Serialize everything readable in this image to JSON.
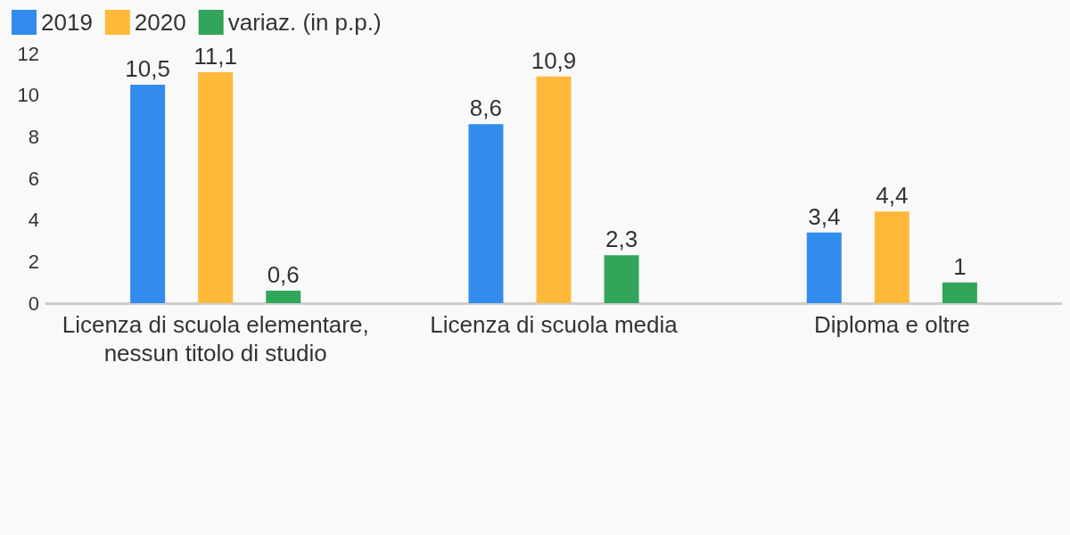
{
  "chart_data": {
    "type": "bar",
    "categories": [
      "Licenza di scuola elementare,\nnessun titolo di studio",
      "Licenza di scuola media",
      "Diploma e oltre"
    ],
    "series": [
      {
        "name": "2019",
        "color": "#318ced",
        "values": [
          10.5,
          8.6,
          3.4
        ],
        "value_labels": [
          "10,5",
          "8,6",
          "3,4"
        ]
      },
      {
        "name": "2020",
        "color": "#ffb93a",
        "values": [
          11.1,
          10.9,
          4.4
        ],
        "value_labels": [
          "11,1",
          "10,9",
          "4,4"
        ]
      },
      {
        "name": "variaz. (in p.p.)",
        "color": "#31a55a",
        "values": [
          0.6,
          2.3,
          1
        ],
        "value_labels": [
          "0,6",
          "2,3",
          "1"
        ]
      }
    ],
    "ylim": [
      0,
      12
    ],
    "yticks": [
      0,
      2,
      4,
      6,
      8,
      10,
      12
    ],
    "grid": false,
    "legend": "top left"
  }
}
